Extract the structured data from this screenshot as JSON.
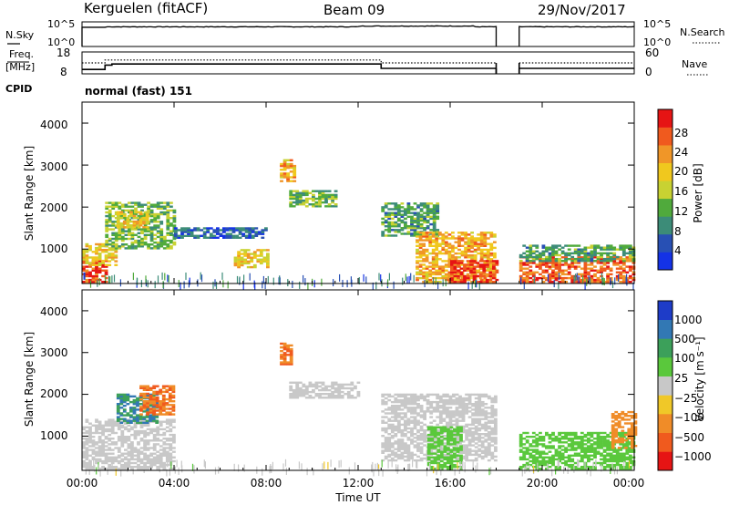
{
  "header": {
    "station": "Kerguelen (fitACF)",
    "beam": "Beam 09",
    "date": "29/Nov/2017"
  },
  "noise_panel": {
    "left_label": "N.Sky",
    "right_label": "N.Search",
    "left_ticks": [
      "10^5",
      "10^0"
    ],
    "right_ticks": [
      "10^5",
      "10^0"
    ]
  },
  "freq_panel": {
    "left_label_1": "Freq.",
    "left_label_2": "[MHz]",
    "right_label": "Nave",
    "left_ticks": [
      "18",
      "8"
    ],
    "right_ticks": [
      "60",
      "0"
    ]
  },
  "cpid_panel": {
    "label": "CPID",
    "program": "normal (fast) 151"
  },
  "power_panel": {
    "ylabel": "Slant Range [km]",
    "yticks": [
      "4000",
      "3000",
      "2000",
      "1000"
    ],
    "colorbar_label": "Power [dB]",
    "colorbar_ticks": [
      "28",
      "24",
      "20",
      "16",
      "12",
      "8",
      "4"
    ],
    "colors": [
      "#1432e6",
      "#2850b4",
      "#3c8c78",
      "#50aa3c",
      "#c8d232",
      "#f0c81e",
      "#f09628",
      "#f05a1e",
      "#e61414"
    ]
  },
  "velocity_panel": {
    "ylabel": "Slant Range [km]",
    "yticks": [
      "4000",
      "3000",
      "2000",
      "1000"
    ],
    "colorbar_label": "Velocity [m s⁻¹]",
    "colorbar_ticks": [
      "1000",
      "500",
      "100",
      "25",
      "−25",
      "−100",
      "−500",
      "−1000"
    ],
    "colors": [
      "#1e3cc8",
      "#3278b4",
      "#3ca05a",
      "#5ac83c",
      "#c8c8c8",
      "#f0c828",
      "#f08c28",
      "#f05a1e",
      "#e61414"
    ]
  },
  "xaxis": {
    "label": "Time UT",
    "ticks": [
      "00:00",
      "04:00",
      "08:00",
      "12:00",
      "16:00",
      "20:00",
      "00:00"
    ]
  },
  "chart_data": {
    "type": "heatmap",
    "title": "Kerguelen (fitACF) Beam 09 29/Nov/2017",
    "xlabel": "Time UT",
    "ylabel": "Slant Range [km]",
    "xlim_hours": [
      0,
      24
    ],
    "ylim_km": [
      180,
      4500
    ],
    "data_gap_hours": [
      18.0,
      19.0
    ],
    "noise_sky_log10": {
      "t": [
        0,
        1,
        18,
        19,
        24
      ],
      "v": [
        4.0,
        4.0,
        4.0,
        4.0,
        4.1
      ]
    },
    "frequency_mhz": {
      "t": [
        0,
        1,
        1.3,
        13,
        18,
        19,
        24
      ],
      "v": [
        10,
        12,
        12.5,
        10.5,
        10.5,
        10.5,
        10.5
      ]
    },
    "nave": {
      "t": [
        0,
        1,
        1.3,
        13,
        18,
        19,
        24
      ],
      "v": [
        30,
        38,
        38,
        30,
        30,
        30,
        30
      ]
    },
    "power_db_regions": [
      {
        "t0": 0.0,
        "t1": 1.1,
        "r0": 200,
        "r1": 700,
        "value": 28
      },
      {
        "t0": 0.0,
        "t1": 1.5,
        "r0": 600,
        "r1": 1100,
        "value": 20
      },
      {
        "t0": 1.0,
        "t1": 4.0,
        "r0": 1000,
        "r1": 2100,
        "value": 14
      },
      {
        "t0": 1.5,
        "t1": 2.8,
        "r0": 1500,
        "r1": 1900,
        "value": 20
      },
      {
        "t0": 4.0,
        "t1": 8.0,
        "r0": 1250,
        "r1": 1500,
        "value": 8
      },
      {
        "t0": 6.6,
        "t1": 8.0,
        "r0": 550,
        "r1": 1000,
        "value": 20
      },
      {
        "t0": 8.6,
        "t1": 9.2,
        "r0": 2600,
        "r1": 3100,
        "value": 22
      },
      {
        "t0": 9.0,
        "t1": 11.0,
        "r0": 2000,
        "r1": 2400,
        "value": 14
      },
      {
        "t0": 13.0,
        "t1": 15.5,
        "r0": 1300,
        "r1": 2100,
        "value": 12
      },
      {
        "t0": 14.5,
        "t1": 18.0,
        "r0": 200,
        "r1": 1400,
        "value": 22
      },
      {
        "t0": 16.0,
        "t1": 18.0,
        "r0": 200,
        "r1": 700,
        "value": 28
      },
      {
        "t0": 19.0,
        "t1": 24.0,
        "r0": 200,
        "r1": 800,
        "value": 26
      },
      {
        "t0": 19.0,
        "t1": 24.0,
        "r0": 700,
        "r1": 1100,
        "value": 12
      }
    ],
    "velocity_ms_regions": [
      {
        "t0": 0.0,
        "t1": 4.0,
        "r0": 200,
        "r1": 1400,
        "value": 0
      },
      {
        "t0": 1.5,
        "t1": 3.2,
        "r0": 1300,
        "r1": 2000,
        "value": 500
      },
      {
        "t0": 2.5,
        "t1": 4.0,
        "r0": 1500,
        "r1": 2200,
        "value": -500
      },
      {
        "t0": 8.6,
        "t1": 9.1,
        "r0": 2700,
        "r1": 3200,
        "value": -500
      },
      {
        "t0": 9.0,
        "t1": 12.0,
        "r0": 1900,
        "r1": 2300,
        "value": 0
      },
      {
        "t0": 13.0,
        "t1": 18.0,
        "r0": 400,
        "r1": 2000,
        "value": 0
      },
      {
        "t0": 15.0,
        "t1": 16.5,
        "r0": 200,
        "r1": 1200,
        "value": 80
      },
      {
        "t0": 19.0,
        "t1": 24.0,
        "r0": 200,
        "r1": 1100,
        "value": 50
      },
      {
        "t0": 23.0,
        "t1": 24.0,
        "r0": 700,
        "r1": 1600,
        "value": -200
      }
    ]
  }
}
